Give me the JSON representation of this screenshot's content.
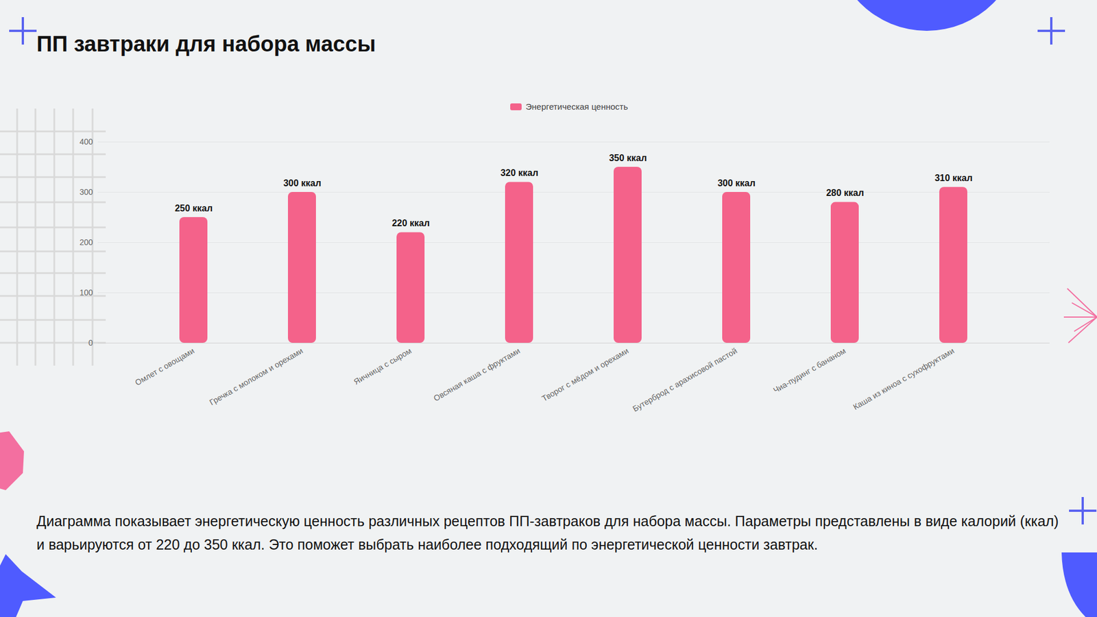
{
  "chart_data": {
    "type": "bar",
    "title": "ПП завтраки для набора массы",
    "caption": "Диаграмма показывает энергетическую ценность различных рецептов ПП-завтраков для набора массы. Параметры представлены в виде калорий (ккал) и варьируются от 220 до 350 ккал. Это поможет выбрать наиболее подходящий по энергетической ценности завтрак.",
    "categories": [
      "Омлет с овощами",
      "Гречка с молоком и орехами",
      "Яичница с сыром",
      "Овсяная каша с фруктами",
      "Творог с мёдом и орехами",
      "Бутерброд с арахисовой пастой",
      "Чиа-пудинг с бананом",
      "Каша из киноа с сухофруктами"
    ],
    "series": [
      {
        "name": "Энергетическая ценность",
        "color": "#f4628a",
        "values": [
          250,
          300,
          220,
          320,
          350,
          300,
          280,
          310
        ],
        "value_labels": [
          "250 ккал",
          "300 ккал",
          "220 ккал",
          "320 ккал",
          "350 ккал",
          "300 ккал",
          "280 ккал",
          "310 ккал"
        ]
      }
    ],
    "ylim": [
      0,
      400
    ],
    "yticks": [
      0,
      100,
      200,
      300,
      400
    ],
    "grid": true,
    "legend": "top",
    "data_labels": true
  }
}
